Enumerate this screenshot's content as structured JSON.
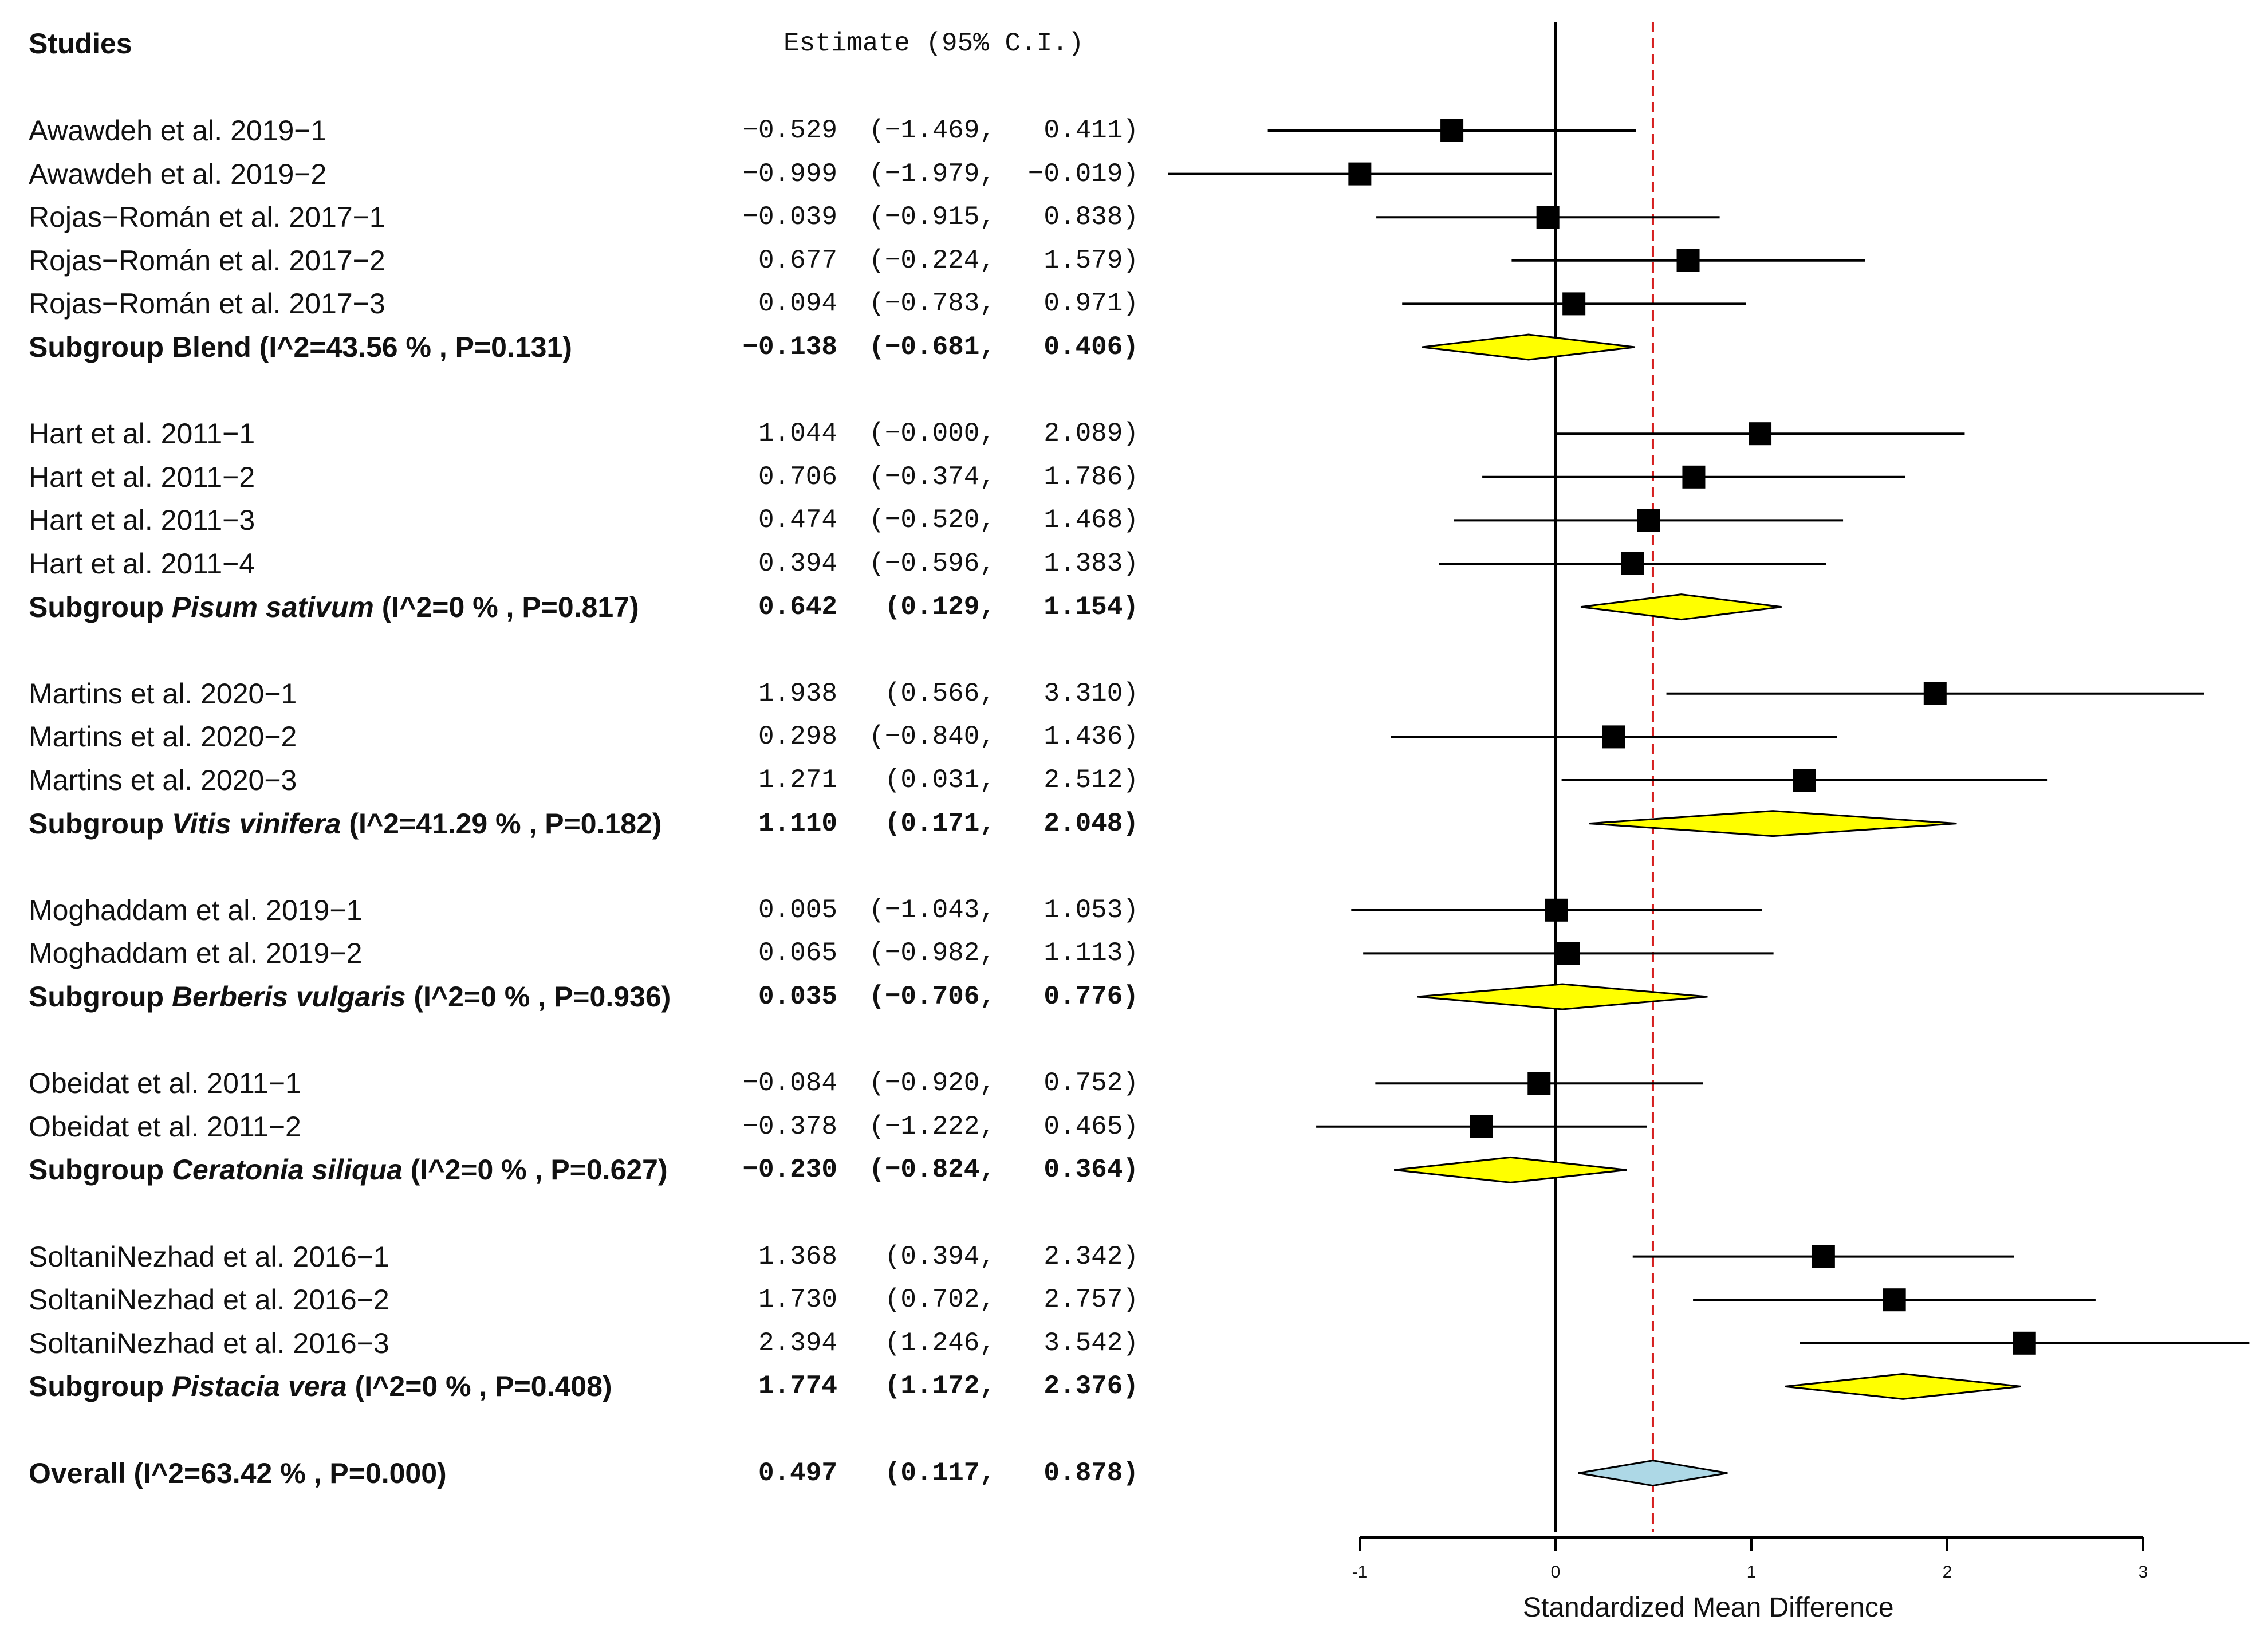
{
  "header": {
    "studies": "Studies",
    "estimate": "Estimate (95% C.I.)"
  },
  "chart_data": {
    "type": "forest",
    "xlabel": "Standardized Mean Difference",
    "xlim": [
      -1,
      3
    ],
    "xticks": [
      -1,
      0,
      1,
      2,
      3
    ],
    "xtick_labels": [
      "-1",
      "0",
      "1",
      "2",
      "3"
    ],
    "overall_reference_line": 0.497,
    "rows": [
      {
        "kind": "study",
        "label": "Awawdeh et al. 2019−1",
        "est": -0.529,
        "lo": -1.469,
        "hi": 0.411,
        "est_txt": "−0.529",
        "lo_txt": "(−1.469,",
        "hi_txt": "0.411)"
      },
      {
        "kind": "study",
        "label": "Awawdeh et al. 2019−2",
        "est": -0.999,
        "lo": -1.979,
        "hi": -0.019,
        "est_txt": "−0.999",
        "lo_txt": "(−1.979,",
        "hi_txt": "−0.019)"
      },
      {
        "kind": "study",
        "label": "Rojas−Román et al. 2017−1",
        "est": -0.039,
        "lo": -0.915,
        "hi": 0.838,
        "est_txt": "−0.039",
        "lo_txt": "(−0.915,",
        "hi_txt": "0.838)"
      },
      {
        "kind": "study",
        "label": "Rojas−Román et al. 2017−2",
        "est": 0.677,
        "lo": -0.224,
        "hi": 1.579,
        "est_txt": "0.677",
        "lo_txt": "(−0.224,",
        "hi_txt": "1.579)"
      },
      {
        "kind": "study",
        "label": "Rojas−Román et al. 2017−3",
        "est": 0.094,
        "lo": -0.783,
        "hi": 0.971,
        "est_txt": "0.094",
        "lo_txt": "(−0.783,",
        "hi_txt": "0.971)"
      },
      {
        "kind": "subgroup",
        "label": "Subgroup Blend (I^2=43.56 % , P=0.131)",
        "label_pre": "Subgroup ",
        "label_italic": "",
        "label_post": "Blend (I^2=43.56 % , P=0.131)",
        "est": -0.138,
        "lo": -0.681,
        "hi": 0.406,
        "est_txt": "−0.138",
        "lo_txt": "(−0.681,",
        "hi_txt": "0.406)"
      },
      {
        "kind": "study",
        "label": "Hart et al. 2011−1",
        "est": 1.044,
        "lo": -0.0,
        "hi": 2.089,
        "est_txt": "1.044",
        "lo_txt": "(−0.000,",
        "hi_txt": "2.089)"
      },
      {
        "kind": "study",
        "label": "Hart et al. 2011−2",
        "est": 0.706,
        "lo": -0.374,
        "hi": 1.786,
        "est_txt": "0.706",
        "lo_txt": "(−0.374,",
        "hi_txt": "1.786)"
      },
      {
        "kind": "study",
        "label": "Hart et al. 2011−3",
        "est": 0.474,
        "lo": -0.52,
        "hi": 1.468,
        "est_txt": "0.474",
        "lo_txt": "(−0.520,",
        "hi_txt": "1.468)"
      },
      {
        "kind": "study",
        "label": "Hart et al. 2011−4",
        "est": 0.394,
        "lo": -0.596,
        "hi": 1.383,
        "est_txt": "0.394",
        "lo_txt": "(−0.596,",
        "hi_txt": "1.383)"
      },
      {
        "kind": "subgroup",
        "label": "Subgroup Pisum sativum (I^2=0 % , P=0.817)",
        "label_pre": "Subgroup ",
        "label_italic": "Pisum sativum",
        "label_post": " (I^2=0 % , P=0.817)",
        "est": 0.642,
        "lo": 0.129,
        "hi": 1.154,
        "est_txt": "0.642",
        "lo_txt": "(0.129,",
        "hi_txt": "1.154)"
      },
      {
        "kind": "study",
        "label": "Martins et al. 2020−1",
        "est": 1.938,
        "lo": 0.566,
        "hi": 3.31,
        "est_txt": "1.938",
        "lo_txt": "(0.566,",
        "hi_txt": "3.310)"
      },
      {
        "kind": "study",
        "label": "Martins et al. 2020−2",
        "est": 0.298,
        "lo": -0.84,
        "hi": 1.436,
        "est_txt": "0.298",
        "lo_txt": "(−0.840,",
        "hi_txt": "1.436)"
      },
      {
        "kind": "study",
        "label": "Martins et al. 2020−3",
        "est": 1.271,
        "lo": 0.031,
        "hi": 2.512,
        "est_txt": "1.271",
        "lo_txt": "(0.031,",
        "hi_txt": "2.512)"
      },
      {
        "kind": "subgroup",
        "label": "Subgroup Vitis vinifera (I^2=41.29 % , P=0.182)",
        "label_pre": "Subgroup ",
        "label_italic": "Vitis vinifera",
        "label_post": " (I^2=41.29 % , P=0.182)",
        "est": 1.11,
        "lo": 0.171,
        "hi": 2.048,
        "est_txt": "1.110",
        "lo_txt": "(0.171,",
        "hi_txt": "2.048)"
      },
      {
        "kind": "study",
        "label": "Moghaddam et al. 2019−1",
        "est": 0.005,
        "lo": -1.043,
        "hi": 1.053,
        "est_txt": "0.005",
        "lo_txt": "(−1.043,",
        "hi_txt": "1.053)"
      },
      {
        "kind": "study",
        "label": "Moghaddam et al. 2019−2",
        "est": 0.065,
        "lo": -0.982,
        "hi": 1.113,
        "est_txt": "0.065",
        "lo_txt": "(−0.982,",
        "hi_txt": "1.113)"
      },
      {
        "kind": "subgroup",
        "label": "Subgroup Berberis vulgaris (I^2=0 % , P=0.936)",
        "label_pre": "Subgroup ",
        "label_italic": "Berberis vulgaris",
        "label_post": " (I^2=0 % , P=0.936)",
        "est": 0.035,
        "lo": -0.706,
        "hi": 0.776,
        "est_txt": "0.035",
        "lo_txt": "(−0.706,",
        "hi_txt": "0.776)"
      },
      {
        "kind": "study",
        "label": "Obeidat et al. 2011−1",
        "est": -0.084,
        "lo": -0.92,
        "hi": 0.752,
        "est_txt": "−0.084",
        "lo_txt": "(−0.920,",
        "hi_txt": "0.752)"
      },
      {
        "kind": "study",
        "label": "Obeidat et al. 2011−2",
        "est": -0.378,
        "lo": -1.222,
        "hi": 0.465,
        "est_txt": "−0.378",
        "lo_txt": "(−1.222,",
        "hi_txt": "0.465)"
      },
      {
        "kind": "subgroup",
        "label": "Subgroup Ceratonia siliqua (I^2=0 % , P=0.627)",
        "label_pre": "Subgroup ",
        "label_italic": "Ceratonia siliqua",
        "label_post": " (I^2=0 % , P=0.627)",
        "est": -0.23,
        "lo": -0.824,
        "hi": 0.364,
        "est_txt": "−0.230",
        "lo_txt": "(−0.824,",
        "hi_txt": "0.364)"
      },
      {
        "kind": "study",
        "label": "SoltaniNezhad et al. 2016−1",
        "est": 1.368,
        "lo": 0.394,
        "hi": 2.342,
        "est_txt": "1.368",
        "lo_txt": "(0.394,",
        "hi_txt": "2.342)"
      },
      {
        "kind": "study",
        "label": "SoltaniNezhad et al. 2016−2",
        "est": 1.73,
        "lo": 0.702,
        "hi": 2.757,
        "est_txt": "1.730",
        "lo_txt": "(0.702,",
        "hi_txt": "2.757)"
      },
      {
        "kind": "study",
        "label": "SoltaniNezhad et al. 2016−3",
        "est": 2.394,
        "lo": 1.246,
        "hi": 3.542,
        "est_txt": "2.394",
        "lo_txt": "(1.246,",
        "hi_txt": "3.542)"
      },
      {
        "kind": "subgroup",
        "label": "Subgroup Pistacia vera (I^2=0 % , P=0.408)",
        "label_pre": "Subgroup ",
        "label_italic": "Pistacia vera",
        "label_post": " (I^2=0 % , P=0.408)",
        "est": 1.774,
        "lo": 1.172,
        "hi": 2.376,
        "est_txt": "1.774",
        "lo_txt": "(1.172,",
        "hi_txt": "2.376)"
      },
      {
        "kind": "overall",
        "label": "Overall (I^2=63.42 % , P=0.000)",
        "label_pre": "",
        "label_italic": "",
        "label_post": "Overall (I^2=63.42 % , P=0.000)",
        "est": 0.497,
        "lo": 0.117,
        "hi": 0.878,
        "est_txt": "0.497",
        "lo_txt": "(0.117,",
        "hi_txt": "0.878)"
      }
    ]
  },
  "colors": {
    "subgroup_diamond": "#ffff00",
    "overall_diamond": "#add8e6",
    "reference_line": "#d62020",
    "ink": "#000000"
  }
}
